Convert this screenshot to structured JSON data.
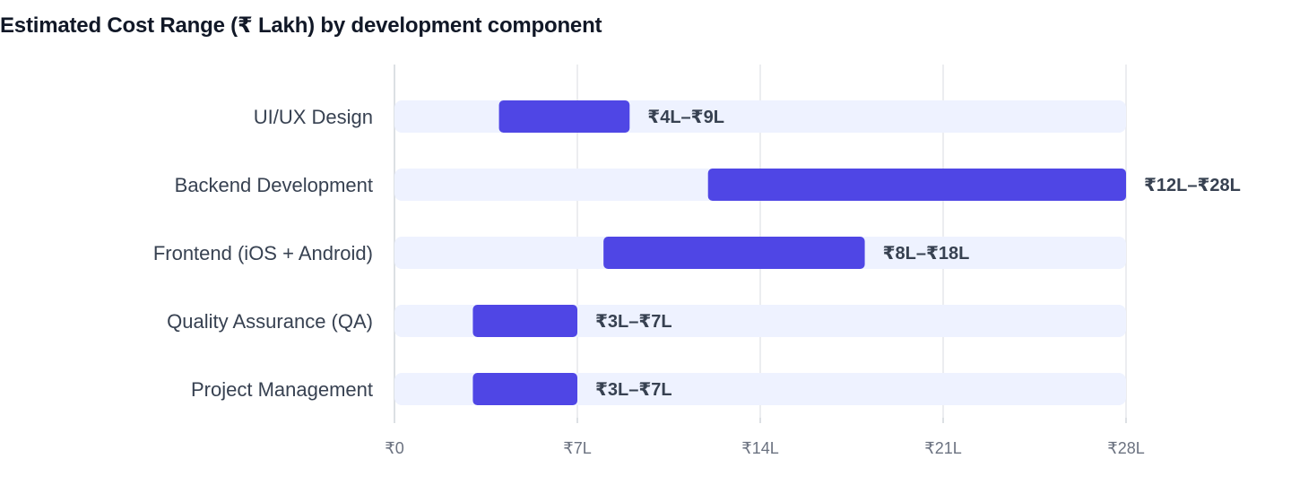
{
  "chart_data": {
    "type": "bar",
    "title": "Estimated Cost Range (₹ Lakh) by development component",
    "categories": [
      "UI/UX Design",
      "Backend Development",
      "Frontend (iOS + Android)",
      "Quality Assurance (QA)",
      "Project Management"
    ],
    "series": [
      {
        "ranges": [
          [
            4,
            9
          ],
          [
            12,
            28
          ],
          [
            8,
            18
          ],
          [
            3,
            7
          ],
          [
            3,
            7
          ]
        ],
        "labels": [
          "₹4L–₹9L",
          "₹12L–₹28L",
          "₹8L–₹18L",
          "₹3L–₹7L",
          "₹3L–₹7L"
        ]
      }
    ],
    "xlim": [
      0,
      28
    ],
    "xticks": [
      0,
      7,
      14,
      21,
      28
    ],
    "xtick_labels": [
      "₹0",
      "₹7L",
      "₹14L",
      "₹21L",
      "₹28L"
    ],
    "xlabel": "",
    "ylabel": "",
    "grid": true,
    "colors": {
      "bar": "#4f46e5",
      "track": "#eef2ff",
      "grid": "#e5e7eb",
      "axis": "#d1d5db"
    }
  }
}
